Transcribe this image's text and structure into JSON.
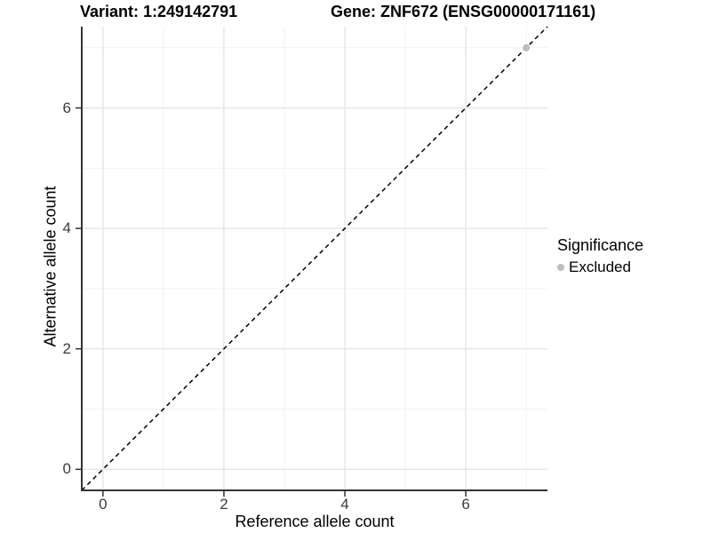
{
  "header": {
    "variant_title": "Variant: 1:249142791",
    "gene_title": "Gene: ZNF672 (ENSG00000171161)"
  },
  "axes": {
    "x": {
      "label": "Reference allele count",
      "ticks": [
        "0",
        "2",
        "4",
        "6"
      ]
    },
    "y": {
      "label": "Alternative allele count",
      "ticks": [
        "0",
        "2",
        "4",
        "6"
      ]
    }
  },
  "legend": {
    "title": "Significance",
    "items": [
      {
        "label": "Excluded",
        "marker": "circle-icon",
        "color": "#bdbdbd"
      }
    ]
  },
  "chart_data": {
    "type": "scatter",
    "title": "Variant: 1:249142791 | Gene: ZNF672 (ENSG00000171161)",
    "xlabel": "Reference allele count",
    "ylabel": "Alternative allele count",
    "xlim": [
      -0.35,
      7.35
    ],
    "ylim": [
      -0.35,
      7.35
    ],
    "x_ticks": [
      0,
      2,
      4,
      6
    ],
    "y_ticks": [
      0,
      2,
      4,
      6
    ],
    "grid_major": [
      0,
      2,
      4,
      6
    ],
    "grid_minor": [
      1,
      3,
      5,
      7
    ],
    "grid": "on",
    "legend_position": "right",
    "series": [
      {
        "name": "Excluded",
        "color": "#bdbdbd",
        "point_radius": 4,
        "points": [
          {
            "x": 7,
            "y": 7
          }
        ]
      }
    ],
    "reference_line": {
      "type": "identity",
      "equation": "y = x",
      "style": "dashed",
      "color": "#000000"
    }
  },
  "colors": {
    "background": "#ffffff",
    "grid_major": "#e5e5e5",
    "grid_minor": "#f0f0f0",
    "axis_line": "#333333",
    "tick_mark": "#333333",
    "point": "#bdbdbd"
  }
}
